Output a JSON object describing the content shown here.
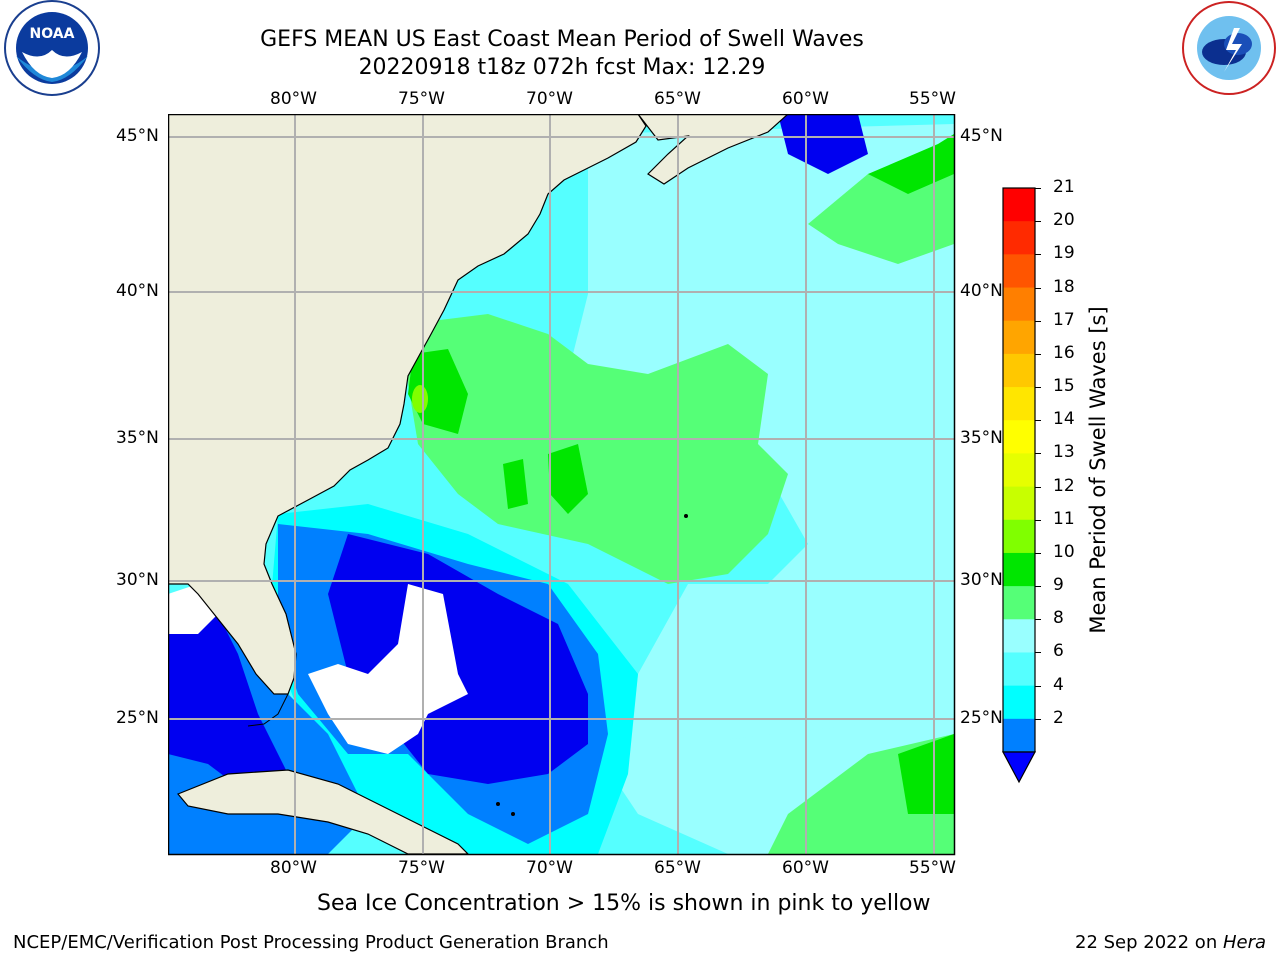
{
  "header": {
    "title_line1": "GEFS MEAN US East Coast Mean Period of Swell Waves",
    "title_line2": "20220918 t18z 072h fcst   Max: 12.29"
  },
  "logos": {
    "left": "NOAA",
    "left_ring": "NATIONAL OCEANIC AND ATMOSPHERIC ADMINISTRATION · U.S. DEPARTMENT OF COMMERCE",
    "right_ring": "NATIONAL WEATHER SERVICE"
  },
  "map": {
    "lon_labels": [
      "80°W",
      "75°W",
      "70°W",
      "65°W",
      "60°W",
      "55°W"
    ],
    "lat_labels": [
      "45°N",
      "40°N",
      "35°N",
      "30°N",
      "25°N"
    ]
  },
  "colorbar": {
    "label": "Mean Period of Swell Waves [s]",
    "ticks": [
      "21",
      "20",
      "19",
      "18",
      "17",
      "16",
      "15",
      "14",
      "13",
      "12",
      "11",
      "10",
      "9",
      "8",
      "6",
      "4",
      "2"
    ],
    "colors": [
      "#ff0000",
      "#ff2a00",
      "#ff5500",
      "#ff7f00",
      "#ffa500",
      "#ffc800",
      "#ffe600",
      "#ffff00",
      "#e6ff00",
      "#c8ff00",
      "#80ff00",
      "#00e600",
      "#55ff77",
      "#99ffff",
      "#55ffff",
      "#00ffff",
      "#0080ff"
    ],
    "extend_color": "#0000ff"
  },
  "colors": {
    "land": "#eeeedc",
    "grid": "#b0b0b0",
    "swell_2_4": "#0000f0",
    "swell_4_6": "#0080ff",
    "swell_6_8": "#00ffff",
    "swell_8_9": "#55ffff",
    "swell_9_10": "#99ffff",
    "swell_10_11": "#55ff77",
    "swell_11_12": "#00e600",
    "swell_12_13": "#80ff00"
  },
  "note": "Sea Ice Concentration > 15% is shown in pink to yellow",
  "footer": {
    "left": "NCEP/EMC/Verification Post Processing Product Generation Branch",
    "right_prefix": "22 Sep 2022 on ",
    "right_host": "Hera"
  }
}
